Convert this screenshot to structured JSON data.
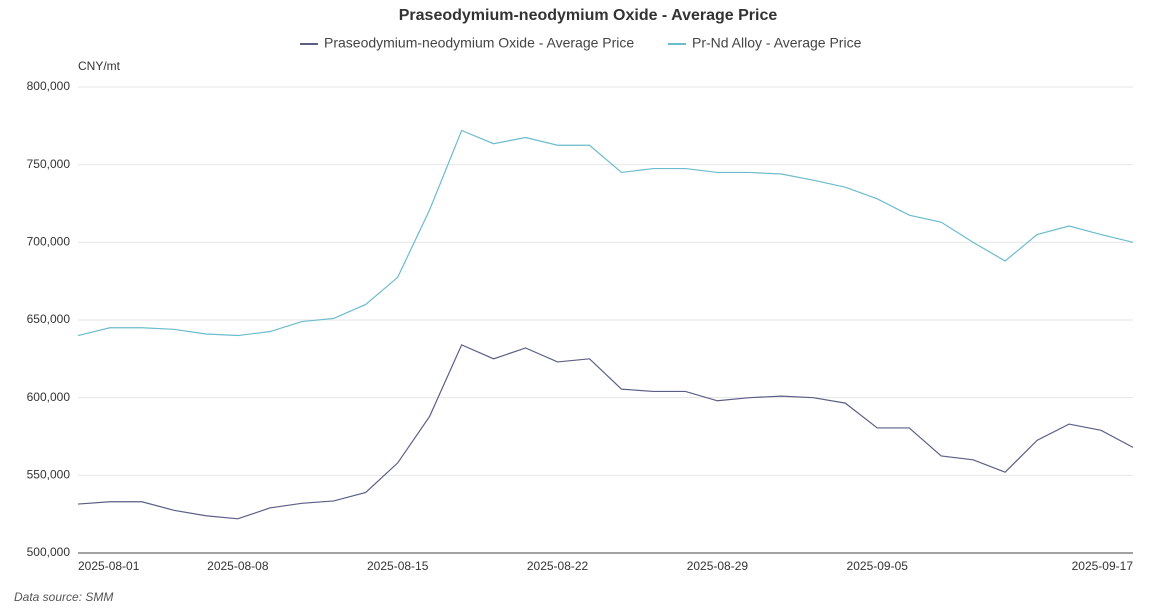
{
  "chart_data": {
    "type": "line",
    "title": "Praseodymium-neodymium Oxide - Average Price",
    "y_unit": "CNY/mt",
    "source": "Data source:  SMM",
    "categories": [
      "2025-08-01",
      null,
      null,
      null,
      null,
      "2025-08-08",
      null,
      null,
      null,
      null,
      "2025-08-15",
      null,
      null,
      null,
      null,
      "2025-08-22",
      null,
      null,
      null,
      null,
      "2025-08-29",
      null,
      null,
      null,
      null,
      "2025-09-05",
      null,
      null,
      null,
      null,
      null,
      null,
      null,
      "2025-09-17"
    ],
    "series": [
      {
        "name": "Praseodymium-neodymium Oxide - Average Price",
        "color": "#5b5f85",
        "values": [
          531500,
          533000,
          533000,
          527500,
          524000,
          522000,
          529000,
          532000,
          533500,
          539000,
          558000,
          588000,
          634000,
          625000,
          632000,
          623000,
          625000,
          605500,
          604000,
          604000,
          598000,
          600000,
          601000,
          600000,
          596500,
          580500,
          580500,
          562500,
          560000,
          552000,
          572500,
          583000,
          579000,
          568000
        ]
      },
      {
        "name": "Pr-Nd Alloy - Average Price",
        "color": "#6bbccc",
        "values": [
          640000,
          645000,
          645000,
          644000,
          641000,
          640000,
          642500,
          649000,
          651000,
          660000,
          677500,
          721000,
          772000,
          763500,
          767500,
          762500,
          762500,
          745000,
          747500,
          747500,
          745000,
          745000,
          744000,
          740000,
          735500,
          728000,
          717500,
          713000,
          700000,
          688000,
          705000,
          710500,
          705000,
          700000
        ]
      }
    ],
    "ylim": [
      500000,
      800000
    ],
    "yticks": [
      {
        "value": 500000,
        "label": "500,000"
      },
      {
        "value": 550000,
        "label": "550,000"
      },
      {
        "value": 600000,
        "label": "600,000"
      },
      {
        "value": 650000,
        "label": "650,000"
      },
      {
        "value": 700000,
        "label": "700,000"
      },
      {
        "value": 750000,
        "label": "750,000"
      },
      {
        "value": 800000,
        "label": "800,000"
      }
    ],
    "grid": true
  }
}
